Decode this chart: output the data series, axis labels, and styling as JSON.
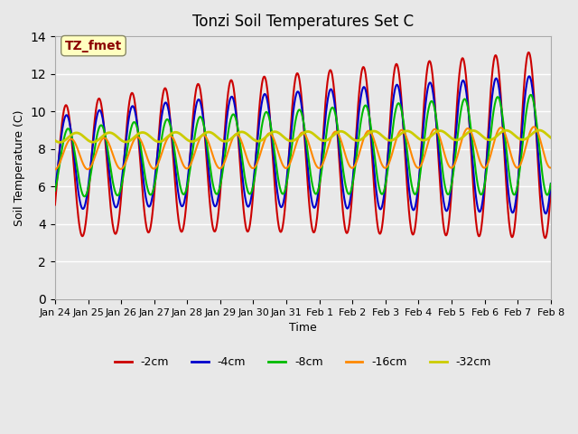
{
  "title": "Tonzi Soil Temperatures Set C",
  "xlabel": "Time",
  "ylabel": "Soil Temperature (C)",
  "annotation": "TZ_fmet",
  "annotation_color": "#8B0000",
  "annotation_bg": "#FFFFC0",
  "ylim": [
    0,
    14
  ],
  "yticks": [
    0,
    2,
    4,
    6,
    8,
    10,
    12,
    14
  ],
  "series": {
    "-2cm": {
      "color": "#CC0000",
      "lw": 1.5
    },
    "-4cm": {
      "color": "#0000CC",
      "lw": 1.5
    },
    "-8cm": {
      "color": "#00BB00",
      "lw": 1.5
    },
    "-16cm": {
      "color": "#FF8800",
      "lw": 1.5
    },
    "-32cm": {
      "color": "#CCCC00",
      "lw": 2.0
    }
  },
  "bg_color": "#E8E8E8",
  "plot_bg": "#E8E8E8",
  "grid_color": "#FFFFFF",
  "xtick_labels": [
    "Jan 24",
    "Jan 25",
    "Jan 26",
    "Jan 27",
    "Jan 28",
    "Jan 29",
    "Jan 30",
    "Jan 31",
    "Feb 1",
    "Feb 2",
    "Feb 3",
    "Feb 4",
    "Feb 5",
    "Feb 6",
    "Feb 7",
    "Feb 8"
  ],
  "legend_labels": [
    "-2cm",
    "-4cm",
    "-8cm",
    "-16cm",
    "-32cm"
  ],
  "legend_colors": [
    "#CC0000",
    "#0000CC",
    "#00BB00",
    "#FF8800",
    "#CCCC00"
  ]
}
